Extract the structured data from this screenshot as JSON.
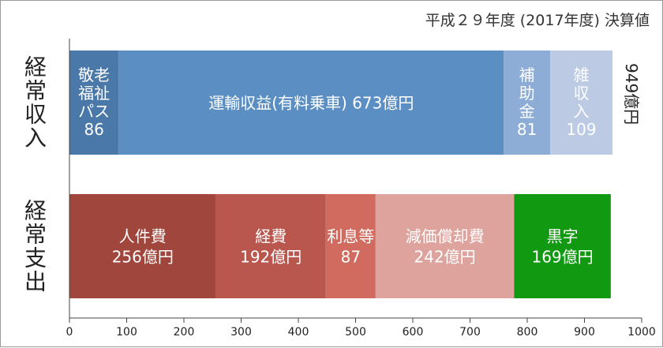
{
  "chart_data": {
    "type": "bar",
    "orientation": "horizontal",
    "stacked": true,
    "title": "平成２９年度 (2017年度) 決算値",
    "categories": [
      "経常収入",
      "経常支出"
    ],
    "series_by_category": [
      {
        "category": "経常収入",
        "total_label": "949億円",
        "segments": [
          {
            "label_lines": [
              "敬老",
              "福祉",
              "パス",
              "86"
            ],
            "value": 86,
            "color": "#4a78a8",
            "text_color": "#ffffff"
          },
          {
            "label_lines": [
              "運輸収益(有料乗車) 673億円"
            ],
            "value": 673,
            "color": "#5b8fc3",
            "text_color": "#ffffff"
          },
          {
            "label_lines": [
              "補",
              "助",
              "金",
              "81"
            ],
            "value": 81,
            "color": "#8dadd6",
            "text_color": "#ffffff"
          },
          {
            "label_lines": [
              "雑",
              "収",
              "入",
              "109"
            ],
            "value": 109,
            "color": "#bccbe3",
            "text_color": "#ffffff"
          }
        ]
      },
      {
        "category": "経常支出",
        "total_label": "",
        "segments": [
          {
            "label_lines": [
              "人件費",
              "256億円"
            ],
            "value": 256,
            "color": "#a0463d",
            "text_color": "#ffffff"
          },
          {
            "label_lines": [
              "経費",
              "192億円"
            ],
            "value": 192,
            "color": "#b9574f",
            "text_color": "#ffffff"
          },
          {
            "label_lines": [
              "利息等",
              "87"
            ],
            "value": 87,
            "color": "#d16b5f",
            "text_color": "#ffffff"
          },
          {
            "label_lines": [
              "減価償却費",
              "242億円"
            ],
            "value": 242,
            "color": "#dea39d",
            "text_color": "#ffffff"
          },
          {
            "label_lines": [
              "黒字",
              "169億円"
            ],
            "value": 169,
            "color": "#119a11",
            "text_color": "#ffffff"
          }
        ]
      }
    ],
    "xlim": [
      0,
      1000
    ],
    "xticks": [
      "0",
      "100",
      "200",
      "300",
      "400",
      "500",
      "600",
      "700",
      "800",
      "900",
      "1000"
    ],
    "grid": false,
    "legend": "none",
    "colors": {
      "axis": "#444444",
      "title": "#333333",
      "category_label": "#222222",
      "total_label": "#222222"
    }
  }
}
